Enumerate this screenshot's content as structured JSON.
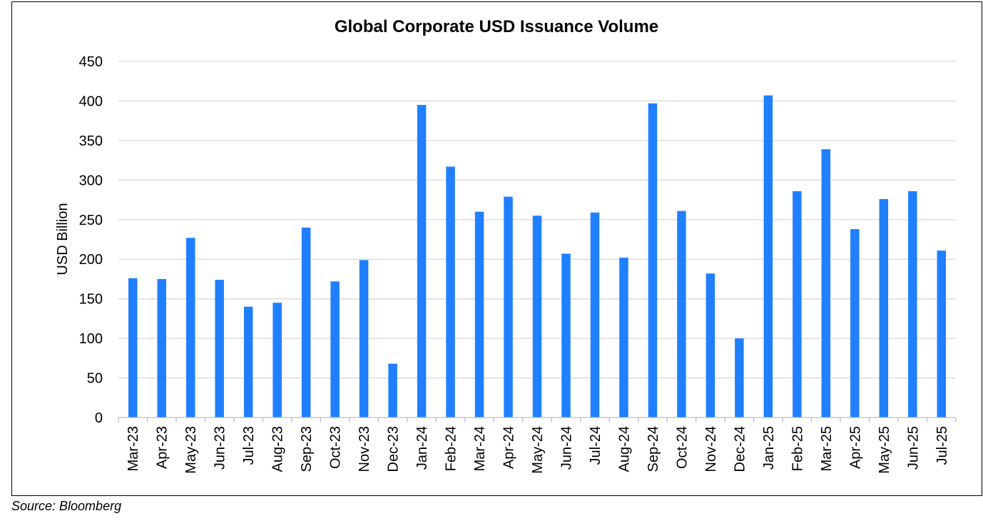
{
  "chart_data": {
    "type": "bar",
    "title": "Global Corporate USD Issuance Volume",
    "ylabel": "USD Billion",
    "xlabel": "",
    "ylim": [
      0,
      450
    ],
    "yticks": [
      "0",
      "50",
      "100",
      "150",
      "200",
      "250",
      "300",
      "350",
      "400",
      "450"
    ],
    "grid": true,
    "bar_color": "#1F7FFF",
    "categories": [
      "Mar-23",
      "Apr-23",
      "May-23",
      "Jun-23",
      "Jul-23",
      "Aug-23",
      "Sep-23",
      "Oct-23",
      "Nov-23",
      "Dec-23",
      "Jan-24",
      "Feb-24",
      "Mar-24",
      "Apr-24",
      "May-24",
      "Jun-24",
      "Jul-24",
      "Aug-24",
      "Sep-24",
      "Oct-24",
      "Nov-24",
      "Dec-24",
      "Jan-25",
      "Feb-25",
      "Mar-25",
      "Apr-25",
      "May-25",
      "Jun-25",
      "Jul-25"
    ],
    "values": [
      176,
      175,
      227,
      174,
      140,
      145,
      240,
      172,
      199,
      68,
      395,
      317,
      260,
      279,
      255,
      207,
      259,
      202,
      397,
      261,
      182,
      100,
      407,
      286,
      339,
      238,
      276,
      286,
      211
    ]
  },
  "source": "Source: Bloomberg"
}
